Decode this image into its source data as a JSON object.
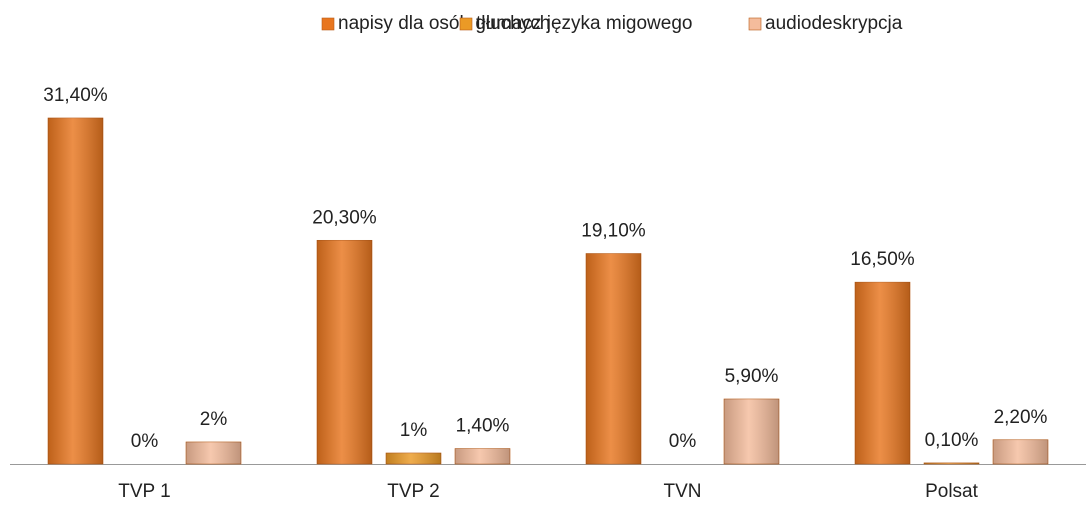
{
  "chart_data": {
    "type": "bar",
    "categories": [
      "TVP 1",
      "TVP 2",
      "TVN",
      "Polsat"
    ],
    "series": [
      {
        "name": "napisy dla osób głuchych",
        "color": "#e8761f",
        "values": [
          31.4,
          20.3,
          19.1,
          16.5
        ],
        "value_labels": [
          "31,40%",
          "20,30%",
          "19,10%",
          "16,50%"
        ]
      },
      {
        "name": "tłumacz języka migowego",
        "color": "#eb9a26",
        "values": [
          0,
          1,
          0,
          0.1
        ],
        "value_labels": [
          "0%",
          "1%",
          "0%",
          "0,10%"
        ]
      },
      {
        "name": "audiodeskrypcja",
        "color": "#f4bc9c",
        "values": [
          2,
          1.4,
          5.9,
          2.2
        ],
        "value_labels": [
          "2%",
          "1,40%",
          "5,90%",
          "2,20%"
        ]
      }
    ],
    "legend": "top"
  }
}
